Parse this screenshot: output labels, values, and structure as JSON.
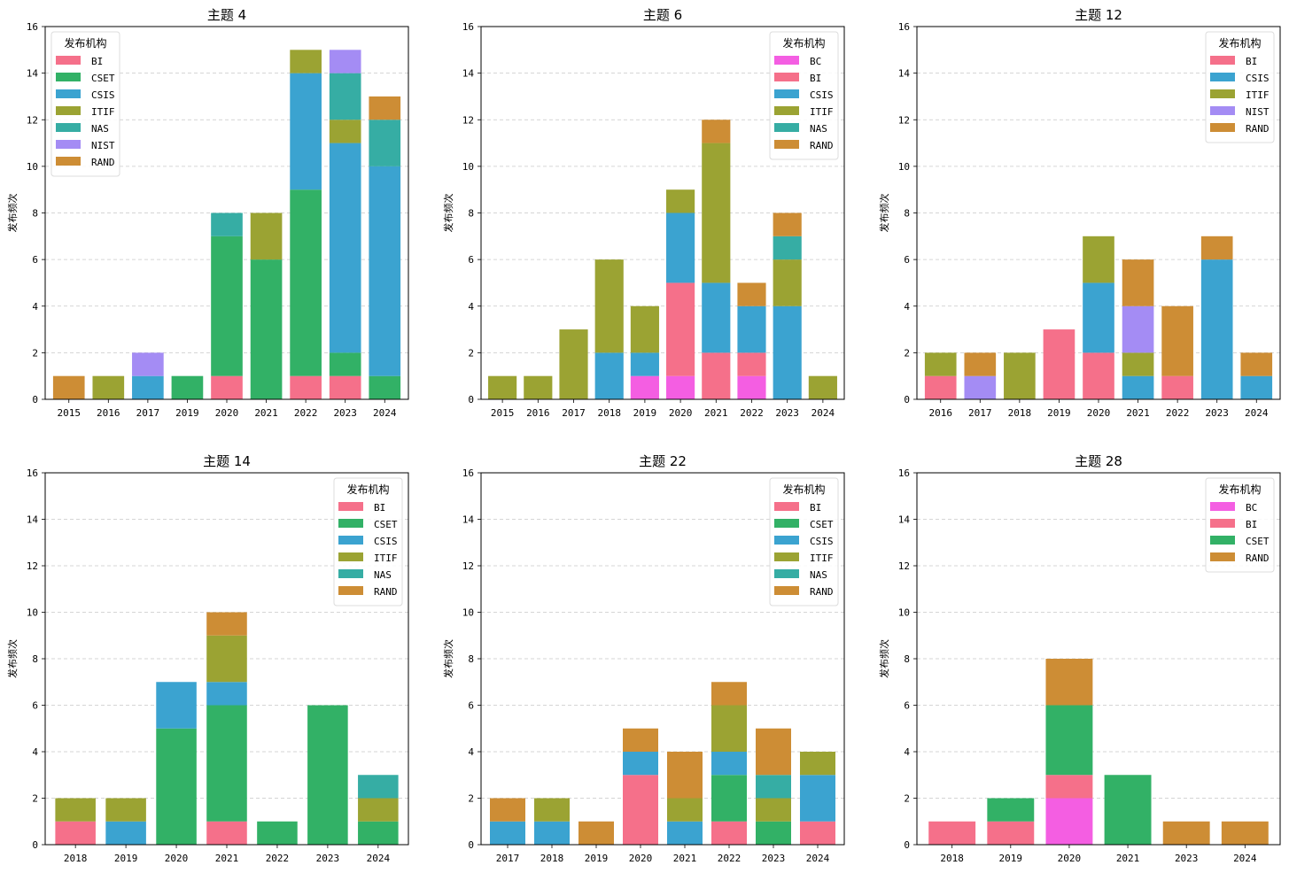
{
  "chart_data": [
    {
      "type": "bar",
      "stacked": true,
      "title": "主题 4",
      "xlabel": "",
      "ylabel": "发布频次",
      "ylim": [
        0,
        16
      ],
      "yticks": [
        0,
        2,
        4,
        6,
        8,
        10,
        12,
        14,
        16
      ],
      "grid": "y-dashed",
      "legend_title": "发布机构",
      "legend_position": "top-left",
      "categories": [
        "2015",
        "2016",
        "2017",
        "2019",
        "2020",
        "2021",
        "2022",
        "2023",
        "2024"
      ],
      "series": [
        {
          "name": "BI",
          "values": [
            0,
            0,
            0,
            0,
            1,
            0,
            1,
            1,
            0
          ]
        },
        {
          "name": "CSET",
          "values": [
            0,
            0,
            0,
            1,
            6,
            6,
            8,
            1,
            1
          ]
        },
        {
          "name": "CSIS",
          "values": [
            0,
            0,
            1,
            0,
            0,
            0,
            5,
            9,
            9
          ]
        },
        {
          "name": "ITIF",
          "values": [
            0,
            1,
            0,
            0,
            0,
            2,
            1,
            1,
            0
          ]
        },
        {
          "name": "NAS",
          "values": [
            0,
            0,
            0,
            0,
            1,
            0,
            0,
            2,
            2
          ]
        },
        {
          "name": "NIST",
          "values": [
            0,
            0,
            1,
            0,
            0,
            0,
            0,
            1,
            0
          ]
        },
        {
          "name": "RAND",
          "values": [
            1,
            0,
            0,
            0,
            0,
            0,
            0,
            0,
            1
          ]
        }
      ]
    },
    {
      "type": "bar",
      "stacked": true,
      "title": "主题 6",
      "xlabel": "",
      "ylabel": "发布频次",
      "ylim": [
        0,
        16
      ],
      "yticks": [
        0,
        2,
        4,
        6,
        8,
        10,
        12,
        14,
        16
      ],
      "grid": "y-dashed",
      "legend_title": "发布机构",
      "legend_position": "top-right",
      "categories": [
        "2015",
        "2016",
        "2017",
        "2018",
        "2019",
        "2020",
        "2021",
        "2022",
        "2023",
        "2024"
      ],
      "series": [
        {
          "name": "BC",
          "values": [
            0,
            0,
            0,
            0,
            1,
            1,
            0,
            1,
            0,
            0
          ]
        },
        {
          "name": "BI",
          "values": [
            0,
            0,
            0,
            0,
            0,
            4,
            2,
            1,
            0,
            0
          ]
        },
        {
          "name": "CSIS",
          "values": [
            0,
            0,
            0,
            2,
            1,
            3,
            3,
            2,
            4,
            0
          ]
        },
        {
          "name": "ITIF",
          "values": [
            1,
            1,
            3,
            4,
            2,
            1,
            6,
            0,
            2,
            1
          ]
        },
        {
          "name": "NAS",
          "values": [
            0,
            0,
            0,
            0,
            0,
            0,
            0,
            0,
            1,
            0
          ]
        },
        {
          "name": "RAND",
          "values": [
            0,
            0,
            0,
            0,
            0,
            0,
            1,
            1,
            1,
            0
          ]
        }
      ]
    },
    {
      "type": "bar",
      "stacked": true,
      "title": "主题 12",
      "xlabel": "",
      "ylabel": "发布频次",
      "ylim": [
        0,
        16
      ],
      "yticks": [
        0,
        2,
        4,
        6,
        8,
        10,
        12,
        14,
        16
      ],
      "grid": "y-dashed",
      "legend_title": "发布机构",
      "legend_position": "top-right",
      "categories": [
        "2016",
        "2017",
        "2018",
        "2019",
        "2020",
        "2021",
        "2022",
        "2023",
        "2024"
      ],
      "series": [
        {
          "name": "BI",
          "values": [
            1,
            0,
            0,
            3,
            2,
            0,
            1,
            0,
            0
          ]
        },
        {
          "name": "CSIS",
          "values": [
            0,
            0,
            0,
            0,
            3,
            1,
            0,
            6,
            1
          ]
        },
        {
          "name": "ITIF",
          "values": [
            1,
            0,
            2,
            0,
            2,
            1,
            0,
            0,
            0
          ]
        },
        {
          "name": "NIST",
          "values": [
            0,
            1,
            0,
            0,
            0,
            2,
            0,
            0,
            0
          ]
        },
        {
          "name": "RAND",
          "values": [
            0,
            1,
            0,
            0,
            0,
            2,
            3,
            1,
            1
          ]
        }
      ]
    },
    {
      "type": "bar",
      "stacked": true,
      "title": "主题 14",
      "xlabel": "",
      "ylabel": "发布频次",
      "ylim": [
        0,
        16
      ],
      "yticks": [
        0,
        2,
        4,
        6,
        8,
        10,
        12,
        14,
        16
      ],
      "grid": "y-dashed",
      "legend_title": "发布机构",
      "legend_position": "top-right",
      "categories": [
        "2018",
        "2019",
        "2020",
        "2021",
        "2022",
        "2023",
        "2024"
      ],
      "series": [
        {
          "name": "BI",
          "values": [
            1,
            0,
            0,
            1,
            0,
            0,
            0
          ]
        },
        {
          "name": "CSET",
          "values": [
            0,
            0,
            5,
            5,
            1,
            6,
            1
          ]
        },
        {
          "name": "CSIS",
          "values": [
            0,
            1,
            2,
            1,
            0,
            0,
            0
          ]
        },
        {
          "name": "ITIF",
          "values": [
            1,
            1,
            0,
            2,
            0,
            0,
            1
          ]
        },
        {
          "name": "NAS",
          "values": [
            0,
            0,
            0,
            0,
            0,
            0,
            1
          ]
        },
        {
          "name": "RAND",
          "values": [
            0,
            0,
            0,
            1,
            0,
            0,
            0
          ]
        }
      ]
    },
    {
      "type": "bar",
      "stacked": true,
      "title": "主题 22",
      "xlabel": "",
      "ylabel": "发布频次",
      "ylim": [
        0,
        16
      ],
      "yticks": [
        0,
        2,
        4,
        6,
        8,
        10,
        12,
        14,
        16
      ],
      "grid": "y-dashed",
      "legend_title": "发布机构",
      "legend_position": "top-right",
      "categories": [
        "2017",
        "2018",
        "2019",
        "2020",
        "2021",
        "2022",
        "2023",
        "2024"
      ],
      "series": [
        {
          "name": "BI",
          "values": [
            0,
            0,
            0,
            3,
            0,
            1,
            0,
            1
          ]
        },
        {
          "name": "CSET",
          "values": [
            0,
            0,
            0,
            0,
            0,
            2,
            1,
            0
          ]
        },
        {
          "name": "CSIS",
          "values": [
            1,
            1,
            0,
            1,
            1,
            1,
            0,
            2
          ]
        },
        {
          "name": "ITIF",
          "values": [
            0,
            1,
            0,
            0,
            1,
            2,
            1,
            1
          ]
        },
        {
          "name": "NAS",
          "values": [
            0,
            0,
            0,
            0,
            0,
            0,
            1,
            0
          ]
        },
        {
          "name": "RAND",
          "values": [
            1,
            0,
            1,
            1,
            2,
            1,
            2,
            0
          ]
        }
      ]
    },
    {
      "type": "bar",
      "stacked": true,
      "title": "主题 28",
      "xlabel": "",
      "ylabel": "发布频次",
      "ylim": [
        0,
        16
      ],
      "yticks": [
        0,
        2,
        4,
        6,
        8,
        10,
        12,
        14,
        16
      ],
      "grid": "y-dashed",
      "legend_title": "发布机构",
      "legend_position": "top-right",
      "categories": [
        "2018",
        "2019",
        "2020",
        "2021",
        "2023",
        "2024"
      ],
      "series": [
        {
          "name": "BC",
          "values": [
            0,
            0,
            2,
            0,
            0,
            0
          ]
        },
        {
          "name": "BI",
          "values": [
            1,
            1,
            1,
            0,
            0,
            0
          ]
        },
        {
          "name": "CSET",
          "values": [
            0,
            1,
            3,
            3,
            0,
            0
          ]
        },
        {
          "name": "RAND",
          "values": [
            0,
            0,
            2,
            0,
            1,
            1
          ]
        }
      ]
    }
  ],
  "colors": {
    "BC": "#f45ee2",
    "BI": "#f5708a",
    "CSET": "#32b166",
    "CSIS": "#3ba3d0",
    "ITIF": "#9ba333",
    "NAS": "#36ada4",
    "NIST": "#a48cf4",
    "RAND": "#cd8d35"
  }
}
